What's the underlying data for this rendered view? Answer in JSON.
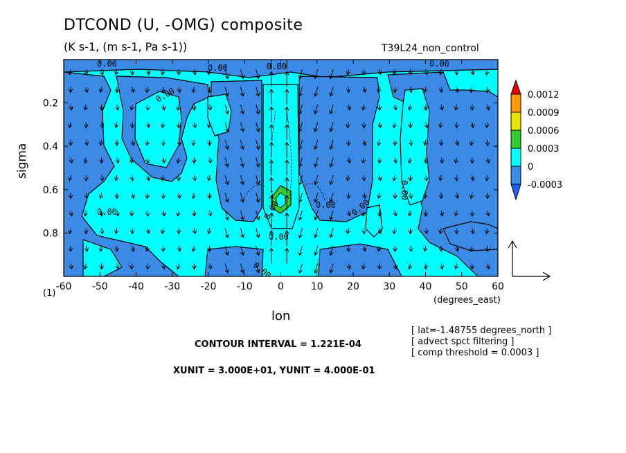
{
  "title": "DTCOND (U, -OMG) composite",
  "subtitle": "(K s-1, (m s-1, Pa s-1))",
  "run_name": "T39L24_non_control",
  "notes": [
    "[ lat=-1.48755 degrees_north ]",
    "[ advect spct filtering ]",
    "[ comp threshold = 0.0003 ]"
  ],
  "contour_interval": "CONTOUR INTERVAL = 1.221E-04",
  "unit_note": "XUNIT = 3.000E+01, YUNIT = 4.000E-01",
  "colors": {
    "deep_blue": "#3a8ae6",
    "cyan": "#00ffff",
    "green": "#33cc33",
    "yellow": "#e6e600",
    "orange": "#ff9900",
    "red": "#e60000",
    "bottom_arrow": "#1f60ff"
  },
  "chart_data": {
    "type": "heatmap",
    "xlabel": "lon",
    "x_units": "(degrees_east)",
    "ylabel": "sigma",
    "y_corner_label": "(1)",
    "xlim": [
      -60,
      60
    ],
    "ylim": [
      1.0,
      0.0
    ],
    "y_inverted": true,
    "x_ticks": [
      -60,
      -50,
      -40,
      -30,
      -20,
      -10,
      0,
      10,
      20,
      30,
      40,
      50,
      60
    ],
    "x_tick_labels": [
      "-60",
      "-50",
      "-40",
      "-30",
      "-20",
      "-10",
      "0",
      "10",
      "20",
      "30",
      "40",
      "50",
      "60"
    ],
    "y_ticks": [
      0.2,
      0.4,
      0.6,
      0.8
    ],
    "y_tick_labels": [
      "0.2",
      "0.4",
      "0.6",
      "0.8"
    ],
    "contour_labels": [
      "0.00",
      "0.00",
      "0.00",
      "0.00",
      "0.00",
      "0.00",
      "0.00",
      "0.00",
      "0.00",
      "0.00",
      "0.00",
      "0.00"
    ],
    "colorbar": {
      "levels": [
        -0.0003,
        0,
        0.0003,
        0.0006,
        0.0009,
        0.0012
      ],
      "labels": [
        "-0.0003",
        "0",
        "0.0003",
        "0.0006",
        "0.0009",
        "0.0012"
      ],
      "colors": [
        "#1f60ff",
        "#3a8ae6",
        "#00ffff",
        "#33cc33",
        "#e6e600",
        "#ff9900",
        "#e60000"
      ]
    },
    "reference_vector": {
      "xunit": 30.0,
      "yunit": 0.4
    }
  }
}
